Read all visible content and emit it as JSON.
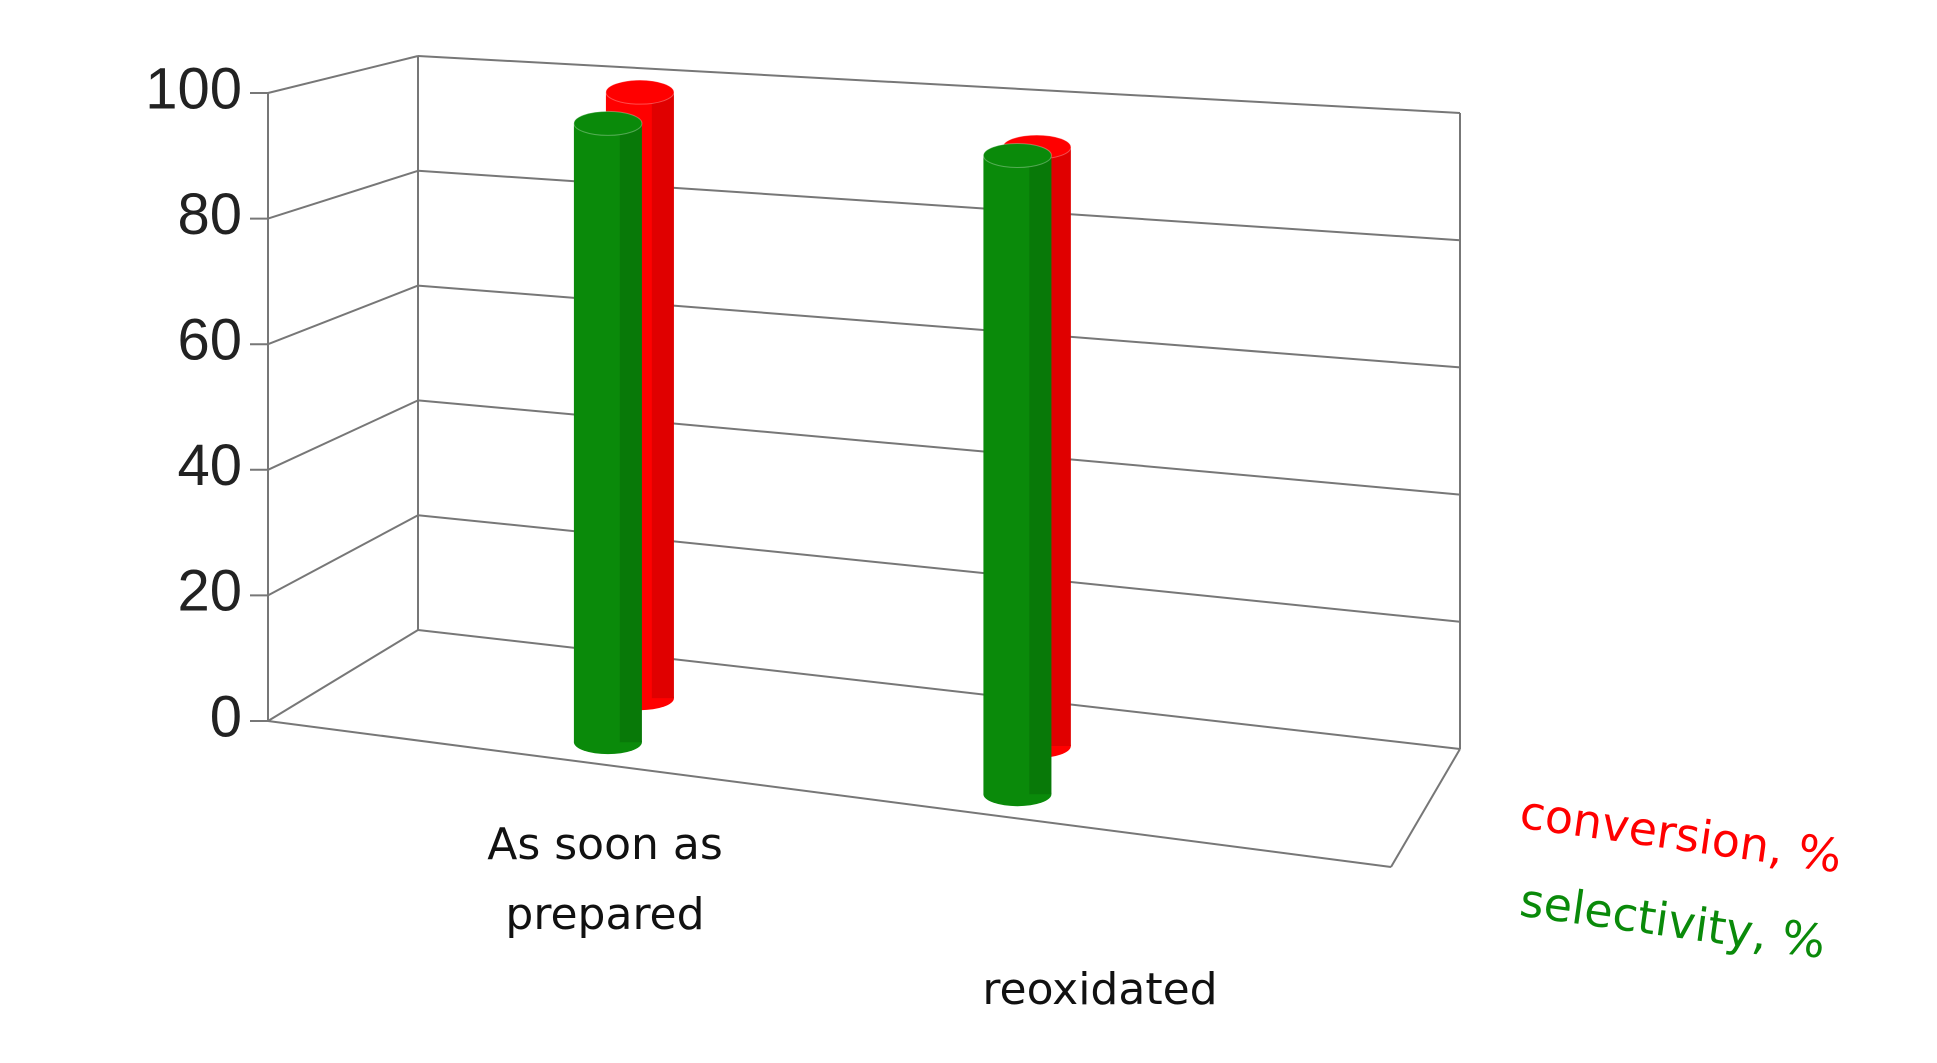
{
  "chart_data": {
    "type": "bar3d",
    "categories": [
      "As soon as prepared",
      "reoxidated"
    ],
    "series": [
      {
        "name": "conversion, %",
        "color": "#ff0000",
        "values": [
          99,
          94
        ]
      },
      {
        "name": "selectivity, %",
        "color": "#0a8a0a",
        "values": [
          97,
          96
        ]
      }
    ],
    "ylim": [
      0,
      100
    ],
    "yticks": [
      0,
      20,
      40,
      60,
      80,
      100
    ],
    "grid": true
  }
}
